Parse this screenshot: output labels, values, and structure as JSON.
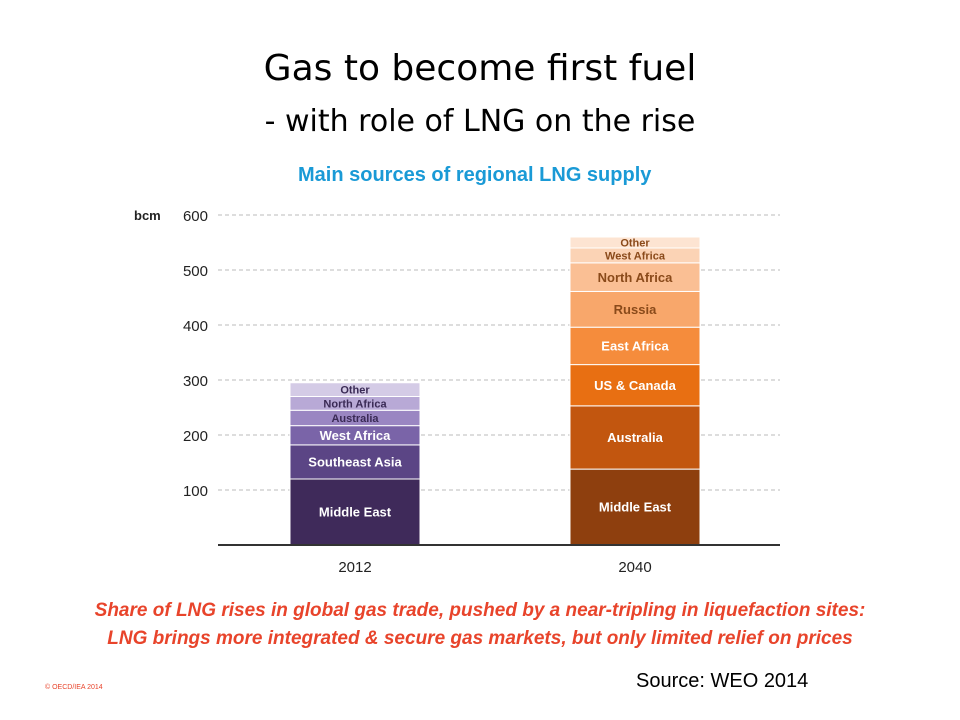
{
  "slide": {
    "title": "Gas to become first fuel",
    "subtitle": "- with role of LNG on the rise",
    "caption_line1": "Share of LNG rises in global gas trade, pushed by a near-tripling in liquefaction sites:",
    "caption_line2": "LNG brings more integrated & secure gas markets, but only limited relief on prices",
    "copyright": "© OECD/IEA 2014",
    "source": "Source: WEO 2014"
  },
  "chart_data": {
    "type": "bar",
    "stacked": true,
    "title": "Main sources of regional LNG supply",
    "ylabel": "bcm",
    "ylim": [
      0,
      600
    ],
    "yticks": [
      100,
      200,
      300,
      400,
      500,
      600
    ],
    "grid": true,
    "categories": [
      "2012",
      "2040"
    ],
    "stacks": [
      {
        "category": "2012",
        "segments": [
          {
            "label": "Middle East",
            "value": 120,
            "color": "#3f2a5a"
          },
          {
            "label": "Southeast Asia",
            "value": 62,
            "color": "#5b4585"
          },
          {
            "label": "West Africa",
            "value": 35,
            "color": "#7a64a8"
          },
          {
            "label": "Australia",
            "value": 28,
            "color": "#9a86c2"
          },
          {
            "label": "North Africa",
            "value": 25,
            "color": "#b8a9d6"
          },
          {
            "label": "Other",
            "value": 25,
            "color": "#d4cbe6"
          }
        ]
      },
      {
        "category": "2040",
        "segments": [
          {
            "label": "Middle East",
            "value": 138,
            "color": "#8e3f0e"
          },
          {
            "label": "Australia",
            "value": 115,
            "color": "#c2560f"
          },
          {
            "label": "US & Canada",
            "value": 75,
            "color": "#e86f12"
          },
          {
            "label": "East Africa",
            "value": 68,
            "color": "#f58c3c"
          },
          {
            "label": "Russia",
            "value": 65,
            "color": "#f8a76b"
          },
          {
            "label": "North Africa",
            "value": 52,
            "color": "#fabf94"
          },
          {
            "label": "West Africa",
            "value": 27,
            "color": "#fbd3b5"
          },
          {
            "label": "Other",
            "value": 20,
            "color": "#fde4d2"
          }
        ]
      }
    ]
  }
}
